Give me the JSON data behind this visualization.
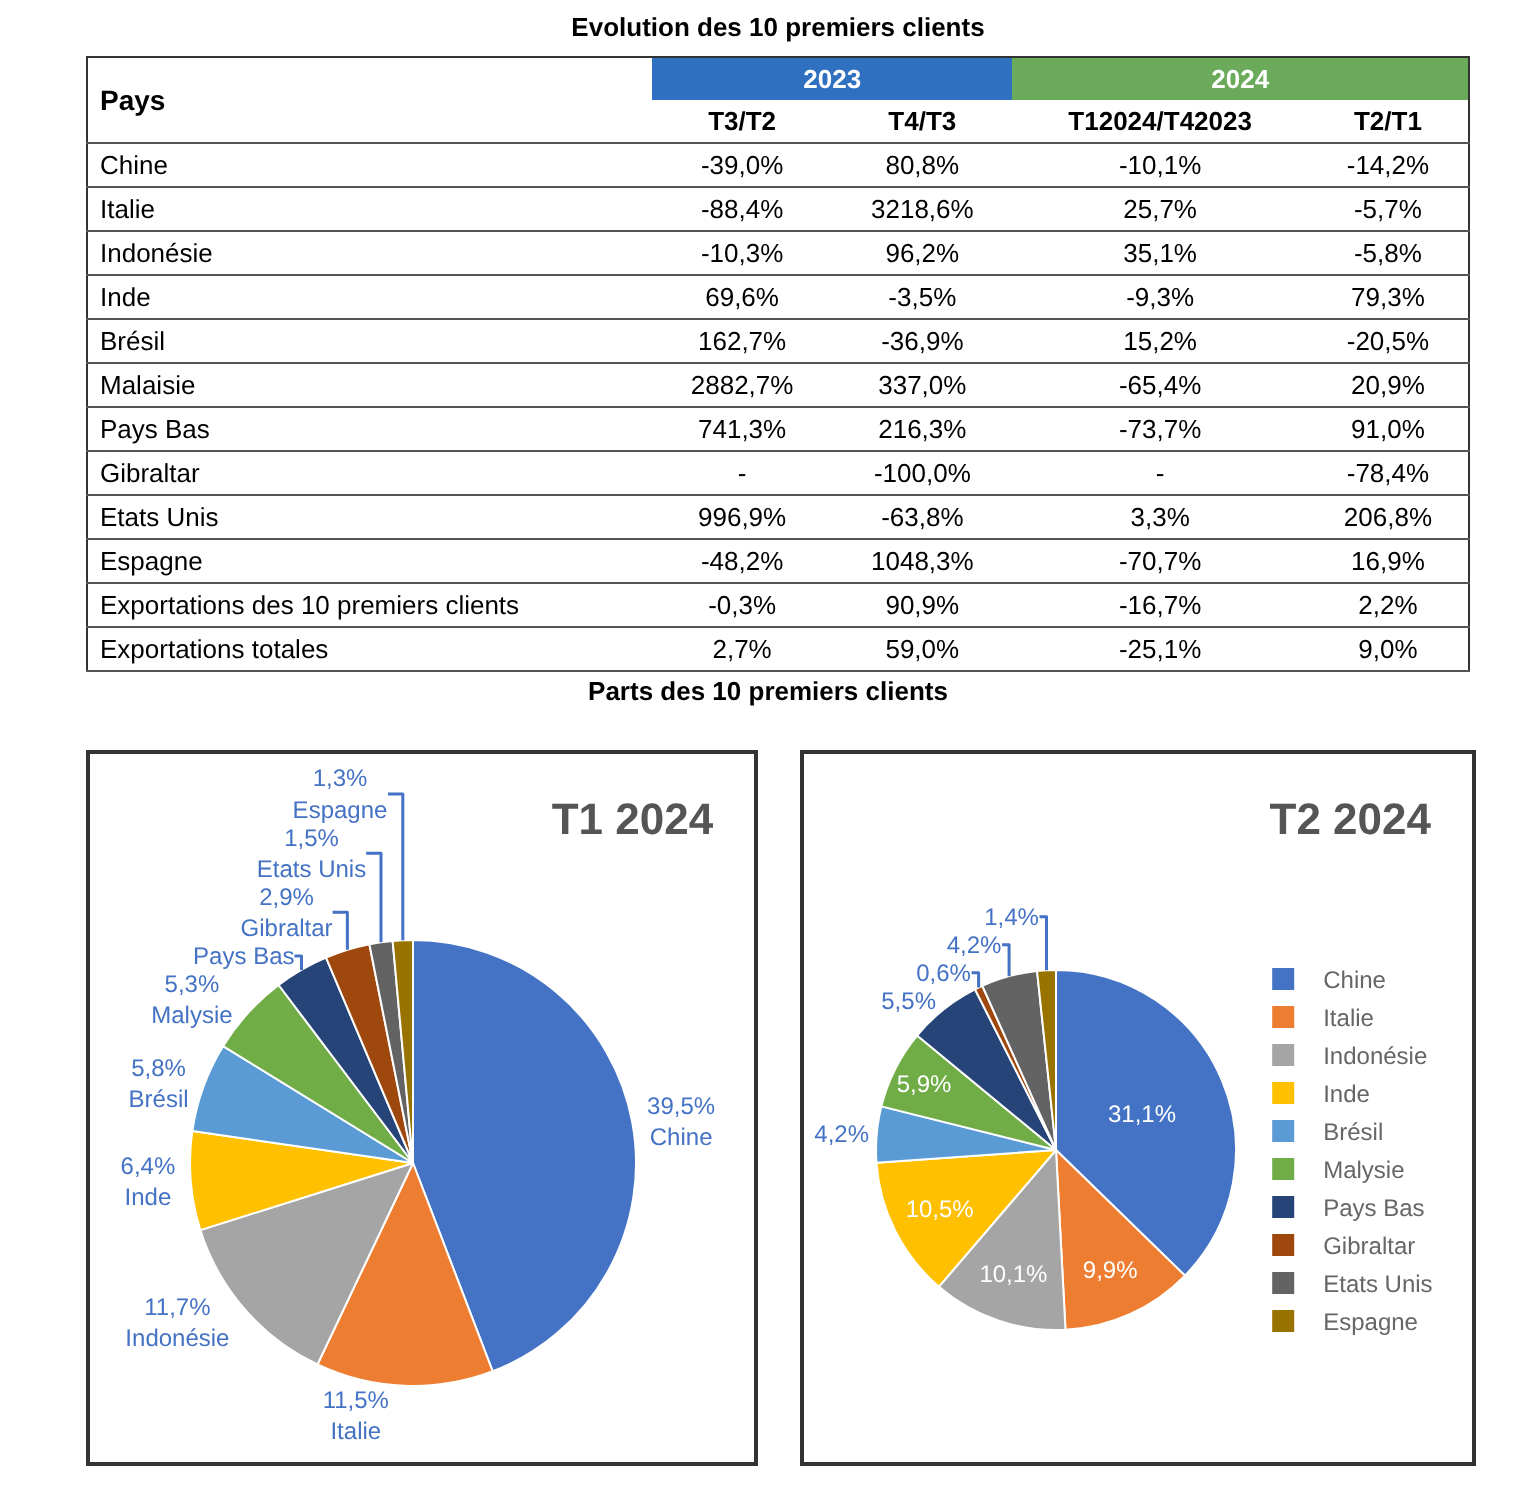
{
  "chart_data": [
    {
      "type": "other",
      "title": "Evolution des 10 premiers clients",
      "ylabel": "Pays",
      "annotations": [
        "2023",
        "2024"
      ],
      "colors": [
        "#3070c0",
        "#6aaa5a"
      ],
      "categories": [
        "T3/T2",
        "T4/T3",
        "T12024/T42023",
        "T2/T1"
      ],
      "y_categories": [
        "Chine",
        "Italie",
        "Indonésie",
        "Inde",
        "Brésil",
        "Malaisie",
        "Pays Bas",
        "Gibraltar",
        "Etats Unis",
        "Espagne",
        "Exportations des 10 premiers clients",
        "Exportations totales"
      ],
      "cell_labels": [
        [
          "-39,0%",
          "80,8%",
          "-10,1%",
          "-14,2%"
        ],
        [
          "-88,4%",
          "3218,6%",
          "25,7%",
          "-5,7%"
        ],
        [
          "-10,3%",
          "96,2%",
          "35,1%",
          "-5,8%"
        ],
        [
          "69,6%",
          "-3,5%",
          "-9,3%",
          "79,3%"
        ],
        [
          "162,7%",
          "-36,9%",
          "15,2%",
          "-20,5%"
        ],
        [
          "2882,7%",
          "337,0%",
          "-65,4%",
          "20,9%"
        ],
        [
          "741,3%",
          "216,3%",
          "-73,7%",
          "91,0%"
        ],
        [
          "-",
          "-100,0%",
          "-",
          "-78,4%"
        ],
        [
          "996,9%",
          "-63,8%",
          "3,3%",
          "206,8%"
        ],
        [
          "-48,2%",
          "1048,3%",
          "-70,7%",
          "16,9%"
        ],
        [
          "-0,3%",
          "90,9%",
          "-16,7%",
          "2,2%"
        ],
        [
          "2,7%",
          "59,0%",
          "-25,1%",
          "9,0%"
        ]
      ]
    },
    {
      "type": "other",
      "title": "Parts des 10 premiers clients"
    },
    {
      "type": "pie",
      "title": "T1 2024",
      "legend": false,
      "categories": [
        "Chine",
        "Italie",
        "Indonésie",
        "Inde",
        "Brésil",
        "Malysie",
        "Pays Bas",
        "Gibraltar",
        "Etats Unis",
        "Espagne"
      ],
      "values": [
        39.5,
        11.5,
        11.7,
        6.4,
        5.8,
        5.3,
        3.5,
        2.9,
        1.5,
        1.3
      ],
      "value_labels": [
        "39,5%",
        "11,5%",
        "11,7%",
        "6,4%",
        "5,8%",
        "5,3%",
        null,
        "2,9%",
        "1,5%",
        "1,3%"
      ],
      "colors": [
        "#4472c4",
        "#ed7d31",
        "#a5a5a5",
        "#ffc000",
        "#5b9bd5",
        "#70ad47",
        "#264478",
        "#9e480e",
        "#636363",
        "#997300"
      ]
    },
    {
      "type": "pie",
      "title": "T2 2024",
      "legend": "right",
      "categories": [
        "Chine",
        "Italie",
        "Indonésie",
        "Inde",
        "Brésil",
        "Malysie",
        "Pays Bas",
        "Gibraltar",
        "Etats Unis",
        "Espagne"
      ],
      "values": [
        31.1,
        9.9,
        10.1,
        10.5,
        4.2,
        5.9,
        5.5,
        0.6,
        4.2,
        1.4
      ],
      "value_labels": [
        "31,1%",
        "9,9%",
        "10,1%",
        "10,5%",
        "4,2%",
        "5,9%",
        "5,5%",
        "0,6%",
        "4,2%",
        "1,4%"
      ],
      "colors": [
        "#4472c4",
        "#ed7d31",
        "#a5a5a5",
        "#ffc000",
        "#5b9bd5",
        "#70ad47",
        "#264478",
        "#9e480e",
        "#636363",
        "#997300"
      ]
    }
  ]
}
